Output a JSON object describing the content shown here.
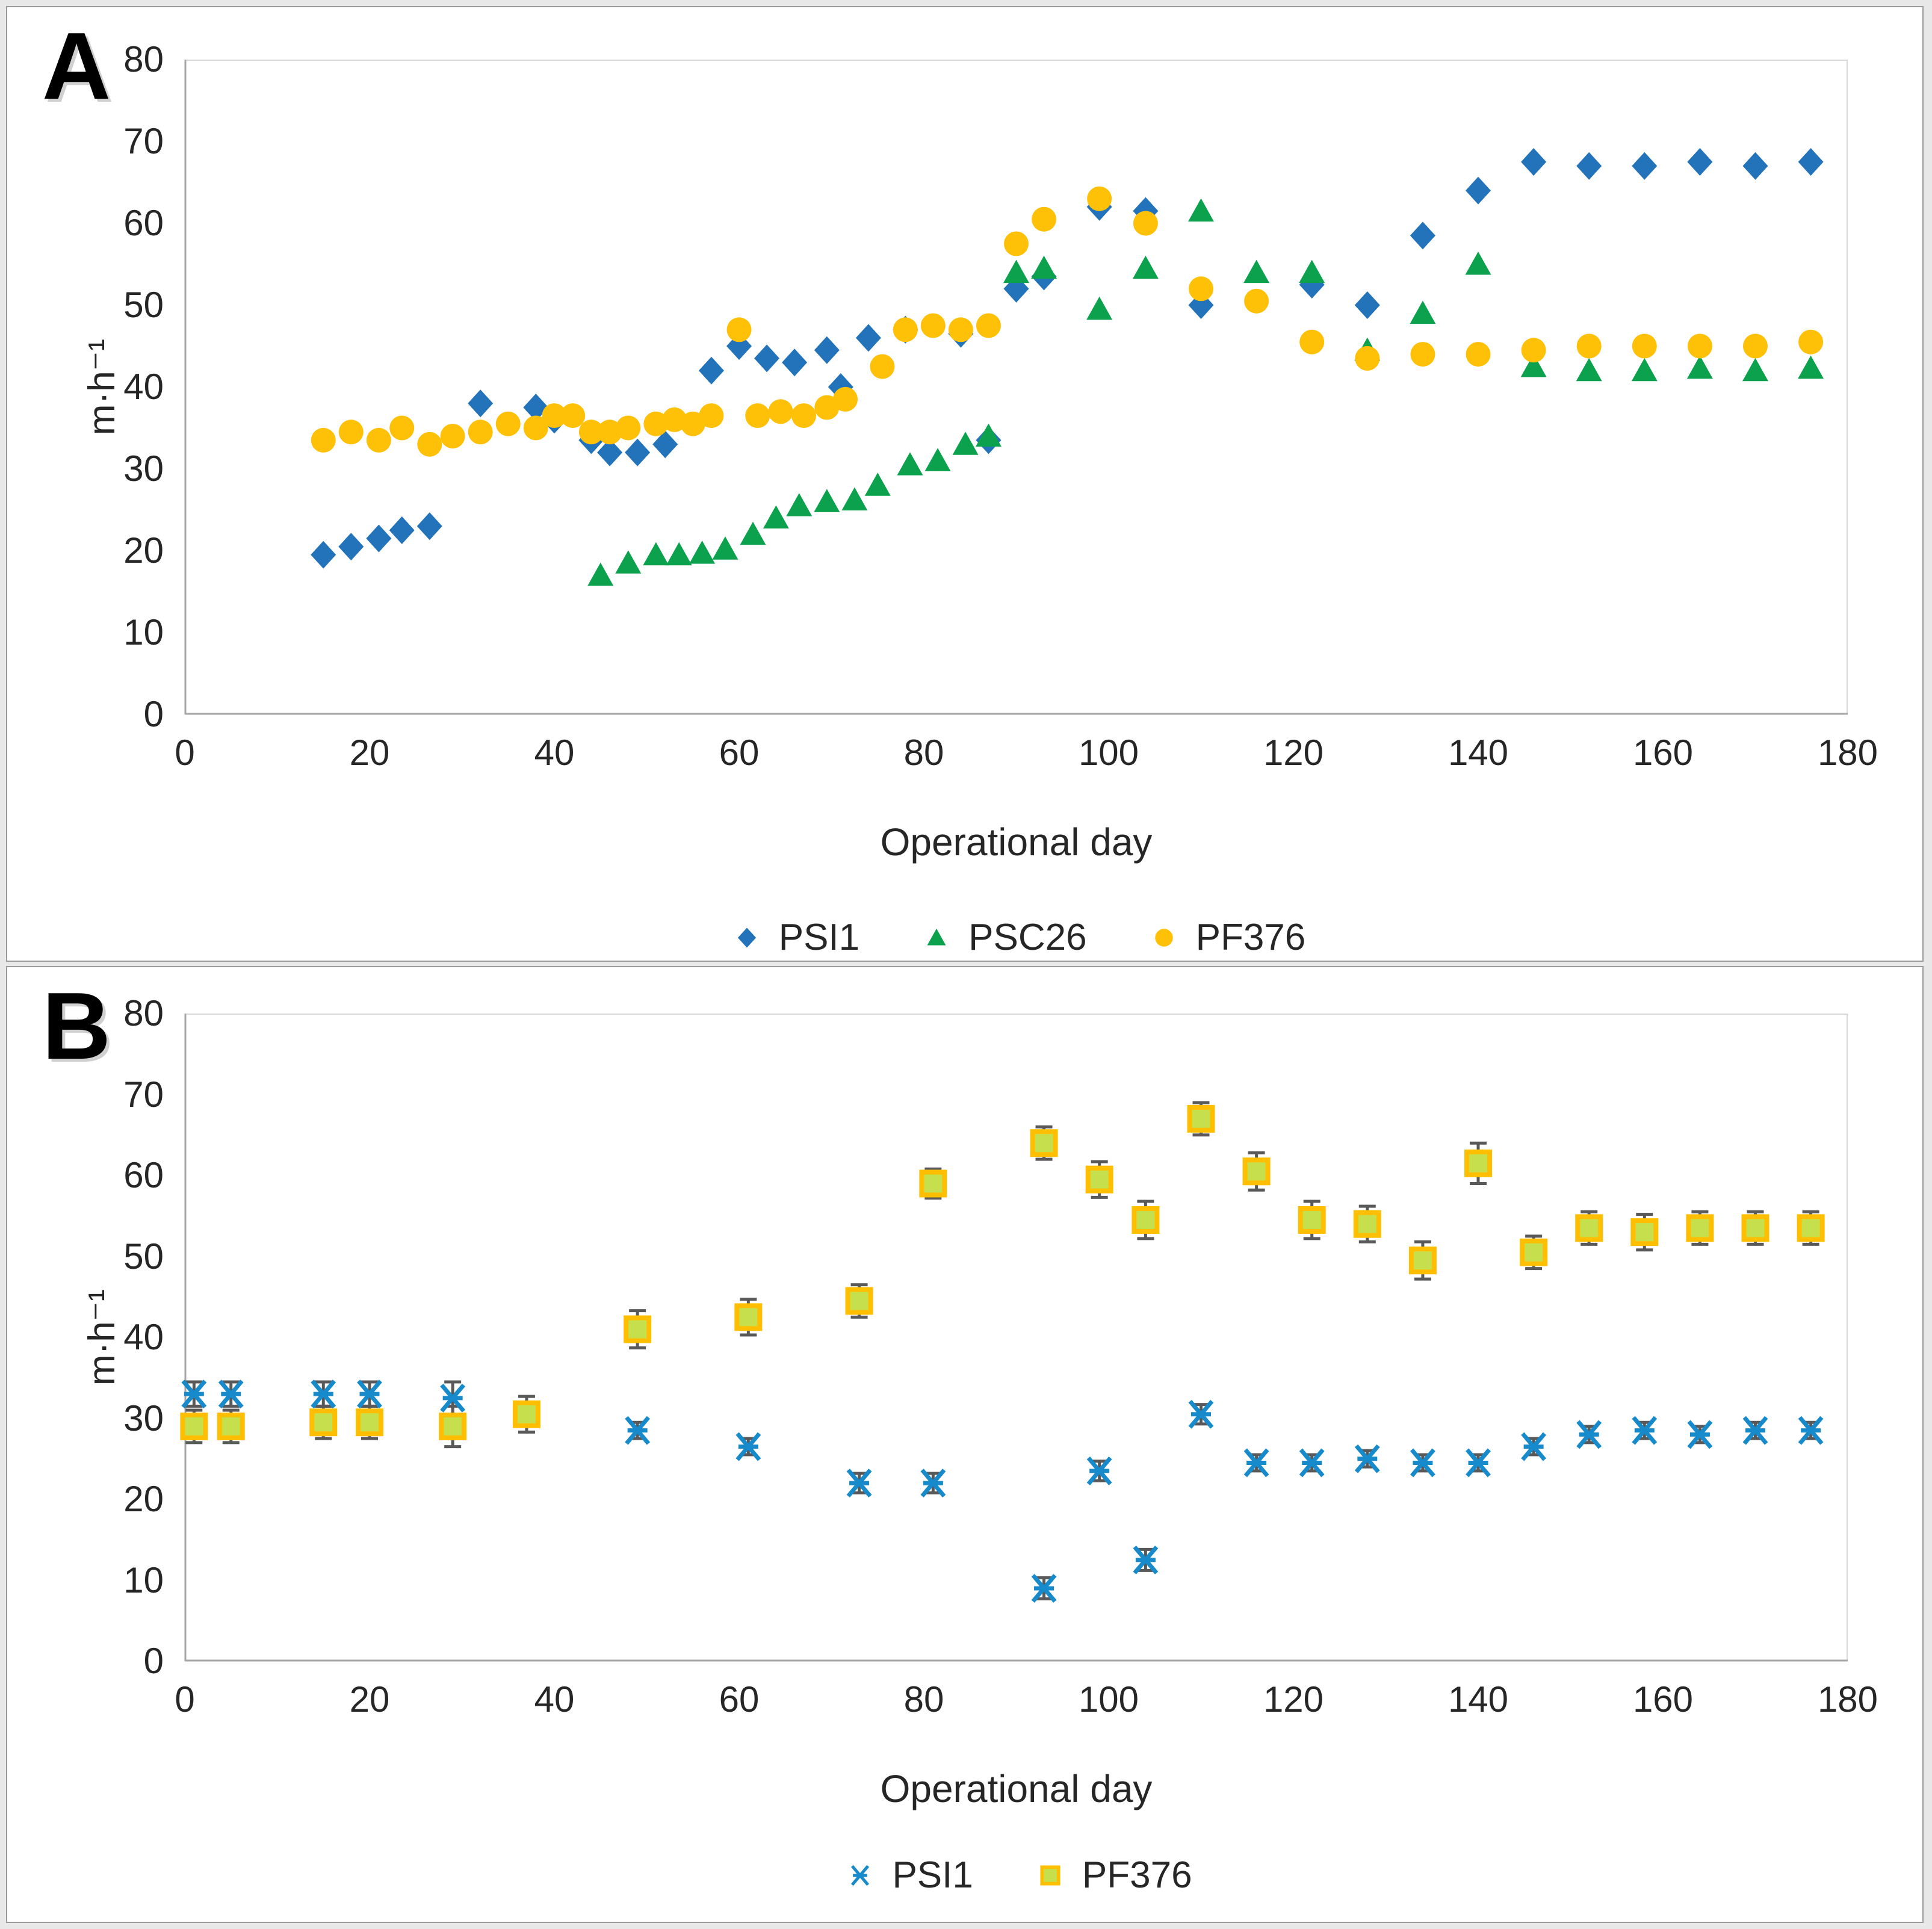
{
  "figure": {
    "background": "#ffffff",
    "border_color": "#9a9a9a"
  },
  "chart_data": [
    {
      "type": "scatter",
      "panel_label": "A",
      "xlabel": "Operational day",
      "ylabel": "m·h⁻¹",
      "xlim": [
        0,
        180
      ],
      "ylim": [
        0,
        80
      ],
      "x_ticks": [
        0,
        20,
        40,
        60,
        80,
        100,
        120,
        140,
        160,
        180
      ],
      "y_ticks": [
        0,
        10,
        20,
        30,
        40,
        50,
        60,
        70,
        80
      ],
      "grid": false,
      "legend_position": "bottom",
      "axis_color": "#a6a6a6",
      "border_color": "#d9d9d9",
      "series": [
        {
          "name": "PSI1",
          "marker": "diamond",
          "color": "#2273b9",
          "points": [
            [
              15,
              19.5
            ],
            [
              18,
              20.5
            ],
            [
              21,
              21.5
            ],
            [
              23.5,
              22.5
            ],
            [
              26.5,
              23
            ],
            [
              32,
              38
            ],
            [
              38,
              37.5
            ],
            [
              40,
              36
            ],
            [
              44,
              33.5
            ],
            [
              46,
              32
            ],
            [
              49,
              32
            ],
            [
              52,
              33
            ],
            [
              57,
              42
            ],
            [
              60,
              45
            ],
            [
              63,
              43.5
            ],
            [
              66,
              43
            ],
            [
              69.5,
              44.5
            ],
            [
              71,
              40
            ],
            [
              74,
              46
            ],
            [
              78,
              47
            ],
            [
              84,
              46.5
            ],
            [
              87,
              33.5
            ],
            [
              90,
              52
            ],
            [
              93,
              53.5
            ],
            [
              99,
              62
            ],
            [
              104,
              61.5
            ],
            [
              110,
              50
            ],
            [
              122,
              52.5
            ],
            [
              128,
              50
            ],
            [
              134,
              58.5
            ],
            [
              140,
              64
            ],
            [
              146,
              67.5
            ],
            [
              152,
              67
            ],
            [
              158,
              67
            ],
            [
              164,
              67.5
            ],
            [
              170,
              67
            ],
            [
              176,
              67.5
            ]
          ]
        },
        {
          "name": "PSC26",
          "marker": "triangle",
          "color": "#0ca24d",
          "points": [
            [
              45,
              17
            ],
            [
              48,
              18.5
            ],
            [
              51,
              19.5
            ],
            [
              53.5,
              19.5
            ],
            [
              56,
              19.7
            ],
            [
              58.5,
              20.2
            ],
            [
              61.5,
              22
            ],
            [
              64,
              24
            ],
            [
              66.5,
              25.5
            ],
            [
              69.5,
              26
            ],
            [
              72.5,
              26.2
            ],
            [
              75,
              28
            ],
            [
              78.5,
              30.5
            ],
            [
              81.5,
              31
            ],
            [
              84.5,
              33
            ],
            [
              87,
              34
            ],
            [
              90,
              54
            ],
            [
              93,
              54.5
            ],
            [
              99,
              49.5
            ],
            [
              104,
              54.5
            ],
            [
              110,
              61.5
            ],
            [
              116,
              54
            ],
            [
              122,
              54
            ],
            [
              128,
              44.5
            ],
            [
              134,
              49
            ],
            [
              140,
              55
            ],
            [
              146,
              42.5
            ],
            [
              152,
              42
            ],
            [
              158,
              42
            ],
            [
              164,
              42.3
            ],
            [
              170,
              42
            ],
            [
              176,
              42.3
            ]
          ]
        },
        {
          "name": "PF376",
          "marker": "circle",
          "color": "#ffc008",
          "points": [
            [
              15,
              33.5
            ],
            [
              18,
              34.5
            ],
            [
              21,
              33.5
            ],
            [
              23.5,
              35
            ],
            [
              26.5,
              33
            ],
            [
              29,
              34
            ],
            [
              32,
              34.5
            ],
            [
              35,
              35.5
            ],
            [
              38,
              35
            ],
            [
              40,
              36.5
            ],
            [
              42,
              36.5
            ],
            [
              44,
              34.5
            ],
            [
              46,
              34.5
            ],
            [
              48,
              35
            ],
            [
              51,
              35.5
            ],
            [
              53,
              36
            ],
            [
              55,
              35.5
            ],
            [
              57,
              36.5
            ],
            [
              60,
              47
            ],
            [
              62,
              36.5
            ],
            [
              64.5,
              37
            ],
            [
              67,
              36.5
            ],
            [
              69.5,
              37.5
            ],
            [
              71.5,
              38.5
            ],
            [
              75.5,
              42.5
            ],
            [
              78,
              47
            ],
            [
              81,
              47.5
            ],
            [
              84,
              47
            ],
            [
              87,
              47.5
            ],
            [
              90,
              57.5
            ],
            [
              93,
              60.5
            ],
            [
              99,
              63
            ],
            [
              104,
              60
            ],
            [
              110,
              52
            ],
            [
              116,
              50.5
            ],
            [
              122,
              45.5
            ],
            [
              128,
              43.5
            ],
            [
              134,
              44
            ],
            [
              140,
              44
            ],
            [
              146,
              44.5
            ],
            [
              152,
              45
            ],
            [
              158,
              45
            ],
            [
              164,
              45
            ],
            [
              170,
              45
            ],
            [
              176,
              45.5
            ]
          ]
        }
      ]
    },
    {
      "type": "scatter",
      "panel_label": "B",
      "xlabel": "Operational day",
      "ylabel": "m·h⁻¹",
      "xlim": [
        0,
        180
      ],
      "ylim": [
        0,
        80
      ],
      "x_ticks": [
        0,
        20,
        40,
        60,
        80,
        100,
        120,
        140,
        160,
        180
      ],
      "y_ticks": [
        0,
        10,
        20,
        30,
        40,
        50,
        60,
        70,
        80
      ],
      "grid": false,
      "legend_position": "bottom",
      "axis_color": "#a6a6a6",
      "border_color": "#d9d9d9",
      "error_bar_color": "#595959",
      "series": [
        {
          "name": "PSI1",
          "marker": "asterisk-x",
          "color": "#168acb",
          "error_bars": true,
          "points": [
            [
              1,
              33,
              1.5
            ],
            [
              5,
              33,
              1.5
            ],
            [
              15,
              33,
              1.5
            ],
            [
              20,
              33,
              1.5
            ],
            [
              29,
              32.5,
              2
            ],
            [
              49,
              28.5,
              1
            ],
            [
              61,
              26.5,
              1
            ],
            [
              73,
              22,
              1.2
            ],
            [
              81,
              22,
              1.2
            ],
            [
              93,
              9,
              1.3
            ],
            [
              99,
              23.5,
              1.2
            ],
            [
              104,
              12.5,
              1.3
            ],
            [
              110,
              30.5,
              1.2
            ],
            [
              116,
              24.5,
              1
            ],
            [
              122,
              24.5,
              1
            ],
            [
              128,
              25,
              1
            ],
            [
              134,
              24.5,
              1
            ],
            [
              140,
              24.5,
              1
            ],
            [
              146,
              26.5,
              1
            ],
            [
              152,
              28,
              1
            ],
            [
              158,
              28.5,
              1
            ],
            [
              164,
              28,
              1
            ],
            [
              170,
              28.5,
              1
            ],
            [
              176,
              28.5,
              1
            ]
          ]
        },
        {
          "name": "PF376",
          "marker": "square",
          "color": "#c6df4d",
          "border_color": "#ffbf00",
          "error_bars": true,
          "points": [
            [
              1,
              29,
              2
            ],
            [
              5,
              29,
              2
            ],
            [
              15,
              29.5,
              2
            ],
            [
              20,
              29.5,
              2
            ],
            [
              29,
              29,
              2.5
            ],
            [
              37,
              30.5,
              2.2
            ],
            [
              49,
              41,
              2.3
            ],
            [
              61,
              42.5,
              2.2
            ],
            [
              73,
              44.5,
              2
            ],
            [
              81,
              59,
              1.8
            ],
            [
              93,
              64,
              2
            ],
            [
              99,
              59.5,
              2.2
            ],
            [
              104,
              54.5,
              2.3
            ],
            [
              110,
              67,
              2
            ],
            [
              116,
              60.5,
              2.3
            ],
            [
              122,
              54.5,
              2.3
            ],
            [
              128,
              54,
              2.2
            ],
            [
              134,
              49.5,
              2.3
            ],
            [
              140,
              61.5,
              2.5
            ],
            [
              146,
              50.5,
              2
            ],
            [
              152,
              53.5,
              2
            ],
            [
              158,
              53,
              2.2
            ],
            [
              164,
              53.5,
              2
            ],
            [
              170,
              53.5,
              2
            ],
            [
              176,
              53.5,
              2
            ]
          ]
        }
      ]
    }
  ]
}
